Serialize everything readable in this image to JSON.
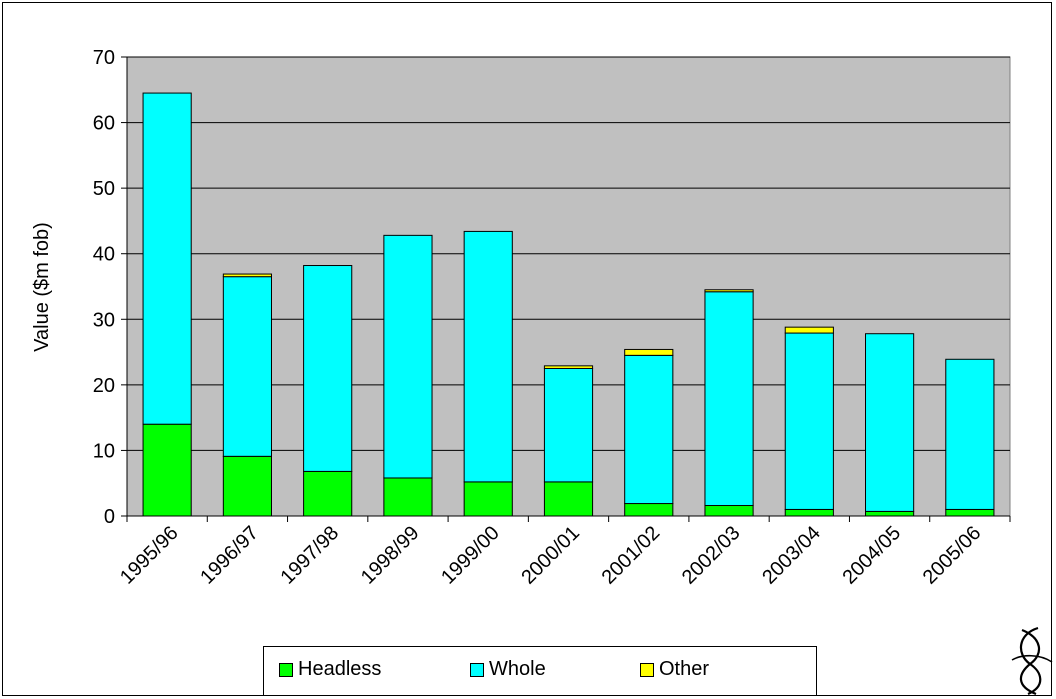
{
  "chart_data": {
    "type": "bar",
    "stacked": true,
    "title": "",
    "xlabel": "",
    "ylabel": "Value ($m fob)",
    "ylim": [
      0,
      70
    ],
    "yticks": [
      0,
      10,
      20,
      30,
      40,
      50,
      60,
      70
    ],
    "grid": true,
    "legend_position": "bottom",
    "plot_background": "#c0c0c0",
    "categories": [
      "1995/96",
      "1996/97",
      "1997/98",
      "1998/99",
      "1999/00",
      "2000/01",
      "2001/02",
      "2002/03",
      "2003/04",
      "2004/05",
      "2005/06"
    ],
    "series": [
      {
        "name": "Headless",
        "color": "#00ff00",
        "values": [
          14.0,
          9.1,
          6.8,
          5.8,
          5.2,
          5.2,
          1.9,
          1.6,
          1.0,
          0.7,
          1.0
        ]
      },
      {
        "name": "Whole",
        "color": "#00ffff",
        "values": [
          50.5,
          27.4,
          31.4,
          37.0,
          38.2,
          17.3,
          22.6,
          32.6,
          26.9,
          27.1,
          22.9
        ]
      },
      {
        "name": "Other",
        "color": "#ffff00",
        "values": [
          0.0,
          0.4,
          0.0,
          0.0,
          0.0,
          0.4,
          0.9,
          0.3,
          0.9,
          0.0,
          0.0
        ]
      }
    ]
  }
}
